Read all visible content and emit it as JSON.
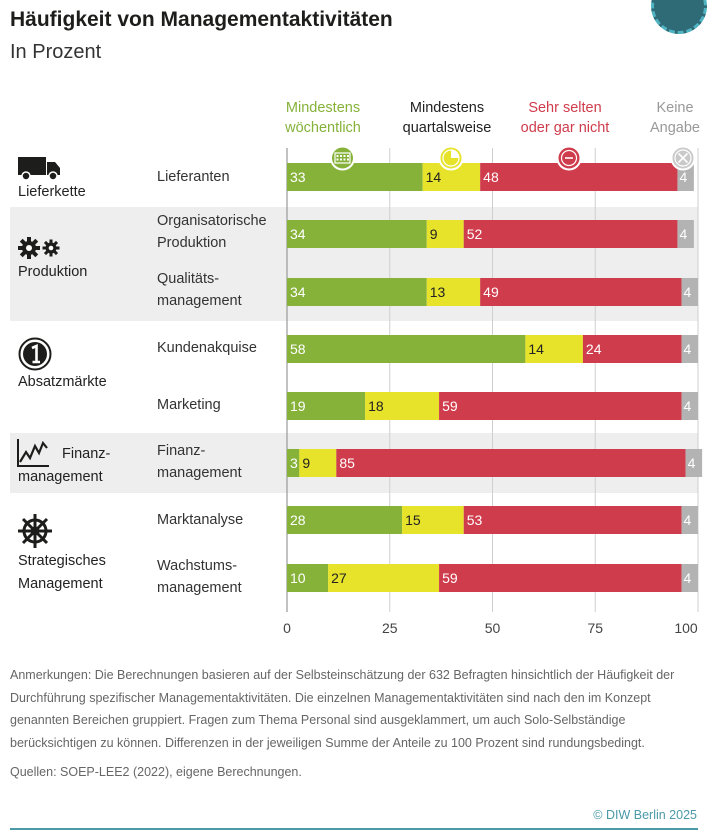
{
  "title": "Häufigkeit von Managementaktivitäten",
  "subtitle": "In Prozent",
  "legend": [
    {
      "line1": "Mindestens",
      "line2": "wöchentlich",
      "color": "#86b23a",
      "icon": "calendar-week-icon"
    },
    {
      "line1": "Mindestens",
      "line2": "quartalsweise",
      "color": "#e6e32a",
      "icon": "pie-quarter-icon"
    },
    {
      "line1": "Sehr selten",
      "line2": "oder gar nicht",
      "color": "#cf3c4c",
      "icon": "minus-circle-icon"
    },
    {
      "line1": "Keine",
      "line2": "Angabe",
      "color": "#b3b3b3",
      "icon": "x-circle-icon"
    }
  ],
  "areas": [
    {
      "label": "Lieferkette",
      "icon": "truck-icon"
    },
    {
      "label": "Produktion",
      "icon": "gears-icon"
    },
    {
      "label": "Absatzmärkte",
      "icon": "coin-icon"
    },
    {
      "label_line1": "Finanz-",
      "label_line2": "management",
      "icon": "chart-line-icon"
    },
    {
      "label_line1": "Strategisches",
      "label_line2": "Management",
      "icon": "ship-wheel-icon"
    }
  ],
  "chart_data": {
    "type": "bar",
    "orientation": "horizontal",
    "stacked": true,
    "categories": [
      "Lieferanten",
      "Organisatorische Produktion",
      "Qualitätsmanagement",
      "Kundenakquise",
      "Marketing",
      "Finanzmanagement",
      "Marktanalyse",
      "Wachstumsmanagement"
    ],
    "category_labels": [
      [
        "Lieferanten"
      ],
      [
        "Organisatorische",
        "Produktion"
      ],
      [
        "Qualitäts-",
        "management"
      ],
      [
        "Kundenakquise"
      ],
      [
        "Marketing"
      ],
      [
        "Finanz-",
        "management"
      ],
      [
        "Marktanalyse"
      ],
      [
        "Wachstums-",
        "management"
      ]
    ],
    "series": [
      {
        "name": "Mindestens wöchentlich",
        "color": "#86b23a",
        "values": [
          33,
          34,
          34,
          58,
          19,
          3,
          28,
          10
        ]
      },
      {
        "name": "Mindestens quartalsweise",
        "color": "#e6e32a",
        "values": [
          14,
          9,
          13,
          14,
          18,
          9,
          15,
          27
        ]
      },
      {
        "name": "Sehr selten oder gar nicht",
        "color": "#cf3c4c",
        "values": [
          48,
          52,
          49,
          24,
          59,
          85,
          53,
          59
        ]
      },
      {
        "name": "Keine Angabe",
        "color": "#b3b3b3",
        "values": [
          4,
          4,
          4,
          4,
          4,
          4,
          4,
          4
        ]
      }
    ],
    "xlim": [
      0,
      100
    ],
    "xticks": [
      0,
      25,
      50,
      75,
      100
    ],
    "grid": true
  },
  "notes": "Anmerkungen: Die Berechnungen basieren auf der Selbsteinschätzung der 632 Befragten hinsichtlich der Häufigkeit der Durchführung spezifischer Managementaktivitäten. Die einzelnen Managementaktivitäten sind nach den im Konzept genannten Bereichen gruppiert. Fragen zum Thema Personal sind ausgeklammert, um auch Solo-Selbständige berücksichtigen zu können. Differenzen in der jeweiligen Summe der Anteile zu 100 Prozent sind rundungsbedingt.",
  "sources": "Quellen: SOEP-LEE2 (2022), eigene Berechnungen.",
  "copyright": "© DIW Berlin 2025"
}
